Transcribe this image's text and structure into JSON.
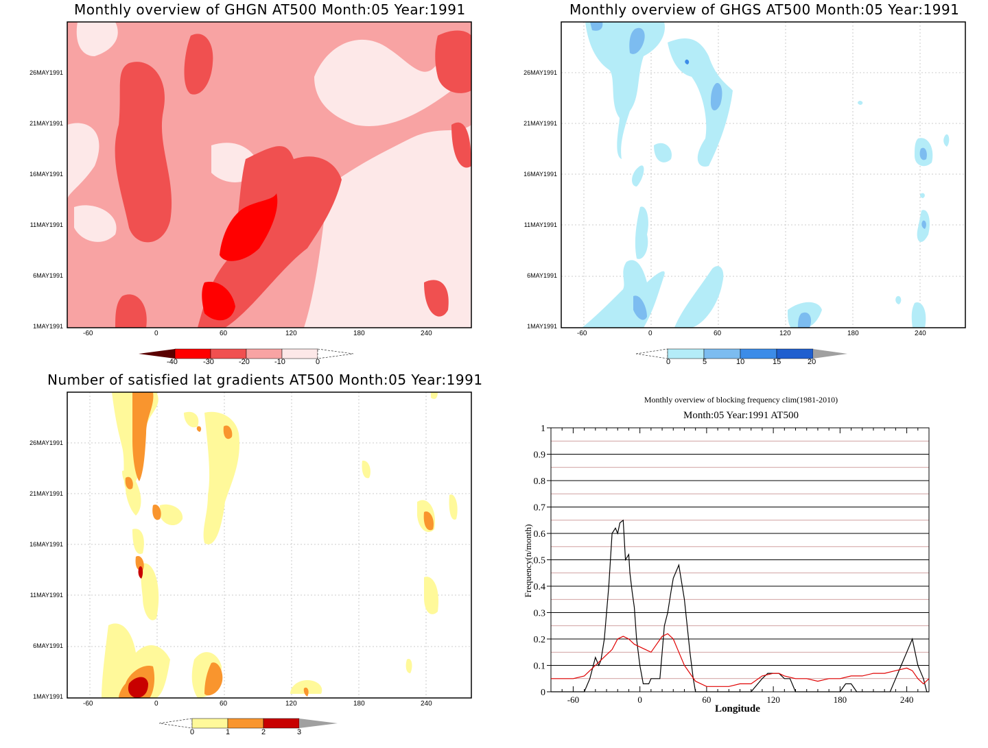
{
  "panels": {
    "ghgn": {
      "title": "Monthly overview of GHGN AT500 Month:05 Year:1991",
      "colorbar": [
        "-40",
        "-30",
        "-20",
        "-10",
        "0"
      ],
      "colors": {
        "c1": "#fde8e8",
        "c2": "#f8a3a3",
        "c3": "#f05050",
        "c4": "#ff0000",
        "c5": "#c00000"
      }
    },
    "ghgs": {
      "title": "Monthly overview of GHGS AT500 Month:05 Year:1991",
      "colorbar": [
        "0",
        "5",
        "10",
        "15",
        "20"
      ],
      "colors": {
        "c1": "#b4ecf8",
        "c2": "#7cbcf0",
        "c3": "#3c8ce8",
        "c4": "#1f5fcf"
      }
    },
    "lat": {
      "title": "Number of satisfied lat gradients AT500 Month:05 Year:1991",
      "colorbar": [
        "0",
        "1",
        "2",
        "3"
      ],
      "colors": {
        "c1": "#fff99a",
        "c2": "#f9952e",
        "c3": "#c80000"
      }
    }
  },
  "axes": {
    "y_ticks": [
      "26MAY1991",
      "21MAY1991",
      "16MAY1991",
      "11MAY1991",
      "6MAY1991",
      "1MAY1991"
    ],
    "x_ticks": [
      "-60",
      "0",
      "60",
      "120",
      "180",
      "240"
    ]
  },
  "chart_data": {
    "type": "line",
    "title": "Monthly overview of blocking frequency clim(1981-2010)",
    "subtitle": "Month:05 Year:1991  AT500",
    "xlabel": "Longitude",
    "ylabel": "Frequency(n/month)",
    "xlim": [
      -80,
      260
    ],
    "ylim": [
      0,
      1
    ],
    "x_ticks": [
      -60,
      0,
      60,
      120,
      180,
      240
    ],
    "y_ticks": [
      0,
      0.1,
      0.2,
      0.3,
      0.4,
      0.5,
      0.6,
      0.7,
      0.8,
      0.9,
      1
    ],
    "y_tick_labels": [
      "0",
      "0.1",
      "0.2",
      "0.3",
      "0.4",
      "0.5",
      "0.6",
      "0.7",
      "0.8",
      "0.9",
      "1"
    ],
    "x_tick_labels": [
      "-60",
      "0",
      "60",
      "120",
      "180",
      "240"
    ],
    "grid": true,
    "series": [
      {
        "color": "#000000",
        "x": [
          -80,
          -50,
          -45,
          -40,
          -37,
          -35,
          -32,
          -28,
          -25,
          -22,
          -20,
          -18,
          -15,
          -13,
          -10,
          -9,
          -7,
          -5,
          -3,
          0,
          3,
          5,
          8,
          10,
          13,
          15,
          18,
          20,
          22,
          25,
          28,
          30,
          35,
          40,
          45,
          48,
          50,
          52,
          55,
          58,
          60,
          62,
          65,
          70,
          75,
          80,
          100,
          110,
          115,
          120,
          125,
          130,
          135,
          140,
          150,
          160,
          180,
          185,
          190,
          195,
          200,
          210,
          220,
          225,
          230,
          235,
          240,
          245,
          250,
          255,
          258,
          260
        ],
        "y": [
          0,
          0,
          0.05,
          0.13,
          0.1,
          0.12,
          0.2,
          0.4,
          0.6,
          0.62,
          0.6,
          0.64,
          0.65,
          0.5,
          0.52,
          0.45,
          0.38,
          0.32,
          0.2,
          0.1,
          0.03,
          0.03,
          0.03,
          0.05,
          0.05,
          0.05,
          0.05,
          0.15,
          0.25,
          0.3,
          0.38,
          0.43,
          0.48,
          0.35,
          0.15,
          0.05,
          0,
          0,
          0,
          0,
          0,
          0,
          0,
          0,
          0,
          0,
          0,
          0.05,
          0.07,
          0.07,
          0.07,
          0.05,
          0.05,
          0,
          0,
          0,
          0,
          0.03,
          0.03,
          0,
          0,
          0,
          0,
          0,
          0.05,
          0.1,
          0.15,
          0.2,
          0.1,
          0.05,
          0,
          0
        ],
        "raw": [
          0,
          0,
          0.05,
          0.13,
          0.1,
          0.12,
          0.2,
          0.4,
          0.6,
          0.62,
          0.6,
          0.64,
          0.65,
          0.5,
          0.52,
          0.45,
          0.38,
          0.32,
          0.2,
          0.1,
          0.03,
          0.03,
          0.03,
          0.05,
          0.05,
          0.05,
          0.05,
          0.15,
          0.25,
          0.3,
          0.38,
          0.43,
          0.48,
          0.35,
          0.15,
          0.05,
          0,
          0,
          0,
          0,
          0,
          0,
          0,
          0,
          0,
          0,
          0,
          0.05,
          0.07,
          0.07,
          0.07,
          0.05,
          0.05,
          0,
          0,
          0,
          0,
          0.03,
          0.03,
          0,
          0,
          0,
          0,
          0,
          0.05,
          0.1,
          0.15,
          0.2,
          0.1,
          0.05,
          0,
          0
        ]
      },
      {
        "color": "#e00000",
        "x": [
          -80,
          -70,
          -60,
          -50,
          -45,
          -40,
          -35,
          -30,
          -25,
          -20,
          -15,
          -10,
          -5,
          0,
          5,
          10,
          15,
          20,
          25,
          30,
          35,
          40,
          45,
          50,
          60,
          70,
          80,
          90,
          100,
          110,
          120,
          125,
          130,
          140,
          150,
          160,
          170,
          180,
          190,
          200,
          210,
          220,
          230,
          240,
          245,
          250,
          255,
          260
        ],
        "y": [
          0.05,
          0.05,
          0.05,
          0.06,
          0.08,
          0.1,
          0.12,
          0.14,
          0.16,
          0.2,
          0.21,
          0.2,
          0.18,
          0.17,
          0.16,
          0.15,
          0.18,
          0.21,
          0.22,
          0.2,
          0.15,
          0.1,
          0.07,
          0.04,
          0.02,
          0.02,
          0.02,
          0.03,
          0.03,
          0.06,
          0.07,
          0.07,
          0.06,
          0.05,
          0.05,
          0.04,
          0.05,
          0.05,
          0.06,
          0.06,
          0.07,
          0.07,
          0.08,
          0.09,
          0.08,
          0.05,
          0.03,
          0.05
        ]
      }
    ]
  }
}
